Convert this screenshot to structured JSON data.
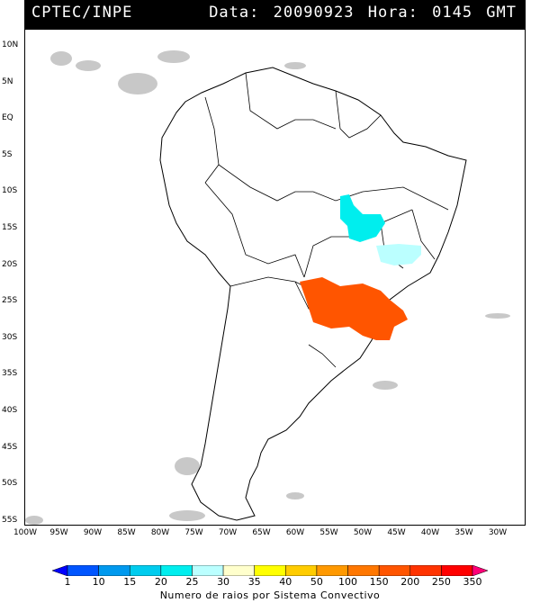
{
  "header": {
    "source": "CPTEC/INPE",
    "datetime": "Data: 20090923 Hora: 0145 GMT"
  },
  "axes": {
    "lat_labels": [
      "10N",
      "5N",
      "EQ",
      "5S",
      "10S",
      "15S",
      "20S",
      "25S",
      "30S",
      "35S",
      "40S",
      "45S",
      "50S",
      "55S"
    ],
    "lon_labels": [
      "100W",
      "95W",
      "90W",
      "85W",
      "80W",
      "75W",
      "70W",
      "65W",
      "60W",
      "55W",
      "50W",
      "45W",
      "40W",
      "35W",
      "30W"
    ]
  },
  "colorbar": {
    "title": "Numero de raios por Sistema Convectivo",
    "ticks": [
      "1",
      "10",
      "15",
      "20",
      "25",
      "30",
      "35",
      "40",
      "50",
      "100",
      "150",
      "200",
      "250",
      "350"
    ],
    "colors": [
      "#0000ff",
      "#0055ff",
      "#0099ee",
      "#00ccee",
      "#00eeee",
      "#bbffff",
      "#ffffcc",
      "#ffff00",
      "#ffcc00",
      "#ff9900",
      "#ff7700",
      "#ff5500",
      "#ff3300",
      "#ff0000",
      "#ff0077"
    ]
  },
  "systems": [
    {
      "name": "central-brazil-system",
      "color": "#00eeee"
    },
    {
      "name": "southeast-brazil-system",
      "color": "#bbffff"
    },
    {
      "name": "southern-brazil-system",
      "color": "#ff5500"
    }
  ],
  "colors": {
    "land_outline": "#000000",
    "cloud": "#c8c8c8"
  }
}
